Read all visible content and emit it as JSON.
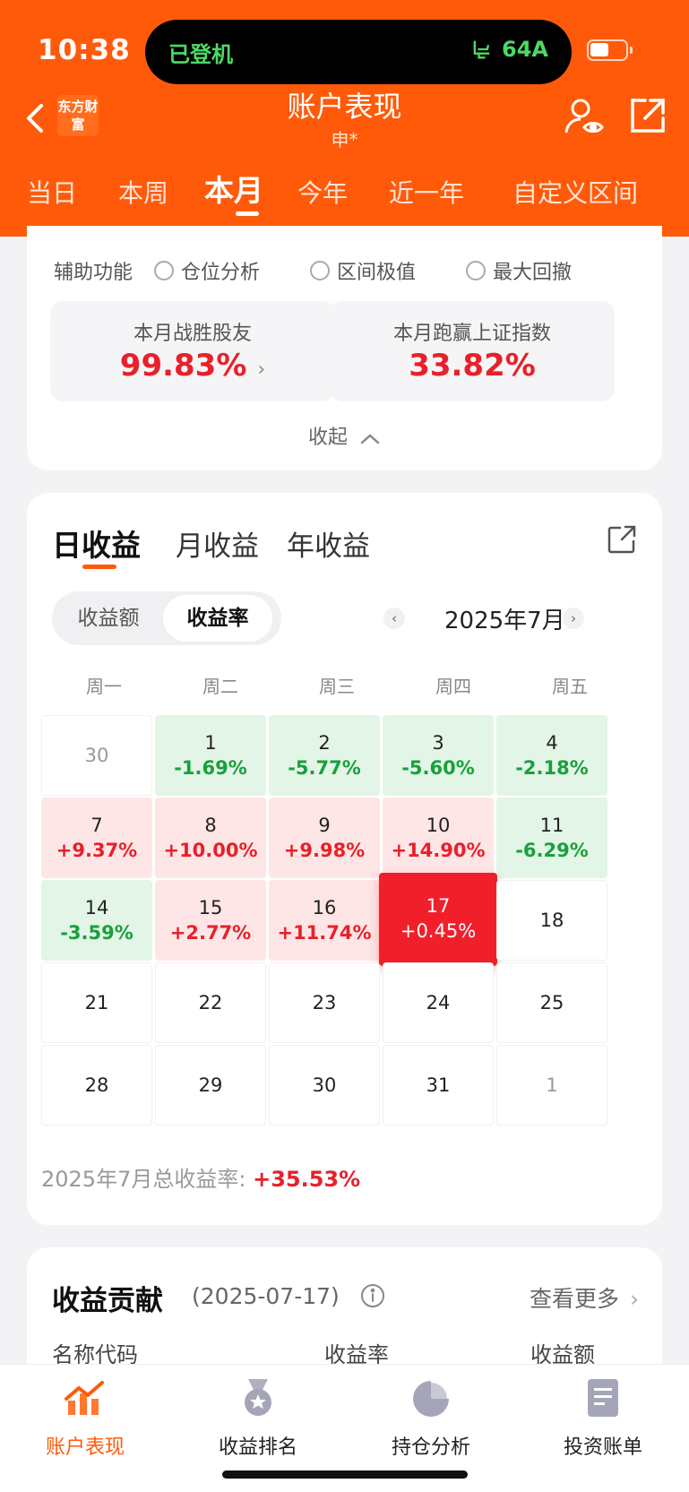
{
  "status_bar": {
    "time": "10:38",
    "island_left": "已登机",
    "island_right": "64A"
  },
  "header": {
    "logo": "东方财富",
    "title": "账户表现",
    "subtitle": "申*",
    "tabs": [
      "当日",
      "本周",
      "本月",
      "今年",
      "近一年",
      "自定义区间"
    ],
    "active_tab": "本月"
  },
  "aux": {
    "label": "辅助功能",
    "options": [
      "仓位分析",
      "区间极值",
      "最大回撤"
    ]
  },
  "stats": [
    {
      "label": "本月战胜股友",
      "value": "99.83%"
    },
    {
      "label": "本月跑赢上证指数",
      "value": "33.82%"
    }
  ],
  "collapse_label": "收起",
  "returns": {
    "tabs": [
      "日收益",
      "月收益",
      "年收益"
    ],
    "active_tab": "日收益",
    "segments": [
      "收益额",
      "收益率"
    ],
    "active_segment": "收益率",
    "month": "2025年7月",
    "weekdays": [
      "周一",
      "周二",
      "周三",
      "周四",
      "周五"
    ],
    "cells": [
      {
        "day": "30",
        "rate": "",
        "type": "dim"
      },
      {
        "day": "1",
        "rate": "-1.69%",
        "type": "loss"
      },
      {
        "day": "2",
        "rate": "-5.77%",
        "type": "loss"
      },
      {
        "day": "3",
        "rate": "-5.60%",
        "type": "loss"
      },
      {
        "day": "4",
        "rate": "-2.18%",
        "type": "loss"
      },
      {
        "day": "7",
        "rate": "+9.37%",
        "type": "gain"
      },
      {
        "day": "8",
        "rate": "+10.00%",
        "type": "gain"
      },
      {
        "day": "9",
        "rate": "+9.98%",
        "type": "gain"
      },
      {
        "day": "10",
        "rate": "+14.90%",
        "type": "gain"
      },
      {
        "day": "11",
        "rate": "-6.29%",
        "type": "loss"
      },
      {
        "day": "14",
        "rate": "-3.59%",
        "type": "loss"
      },
      {
        "day": "15",
        "rate": "+2.77%",
        "type": "gain"
      },
      {
        "day": "16",
        "rate": "+11.74%",
        "type": "gain"
      },
      {
        "day": "17",
        "rate": "+0.45%",
        "type": "sel"
      },
      {
        "day": "18",
        "rate": "",
        "type": "plain"
      },
      {
        "day": "21",
        "rate": "",
        "type": "plain"
      },
      {
        "day": "22",
        "rate": "",
        "type": "plain"
      },
      {
        "day": "23",
        "rate": "",
        "type": "plain"
      },
      {
        "day": "24",
        "rate": "",
        "type": "plain"
      },
      {
        "day": "25",
        "rate": "",
        "type": "plain"
      },
      {
        "day": "28",
        "rate": "",
        "type": "plain"
      },
      {
        "day": "29",
        "rate": "",
        "type": "plain"
      },
      {
        "day": "30",
        "rate": "",
        "type": "plain"
      },
      {
        "day": "31",
        "rate": "",
        "type": "plain"
      },
      {
        "day": "1",
        "rate": "",
        "type": "dim"
      }
    ],
    "total_label": "2025年7月总收益率:",
    "total_value": "+35.53%"
  },
  "contribution": {
    "title": "收益贡献",
    "date": "(2025-07-17)",
    "see_more": "查看更多",
    "columns": [
      "名称代码",
      "收益率",
      "收益额"
    ]
  },
  "bottom_nav": [
    {
      "label": "账户表现",
      "icon": "chart-trend-icon",
      "active": true
    },
    {
      "label": "收益排名",
      "icon": "medal-icon",
      "active": false
    },
    {
      "label": "持仓分析",
      "icon": "pie-chart-icon",
      "active": false
    },
    {
      "label": "投资账单",
      "icon": "bill-icon",
      "active": false
    }
  ],
  "colors": {
    "brand": "#ff5a0a",
    "gain": "#e8202a",
    "loss": "#19a03c"
  }
}
